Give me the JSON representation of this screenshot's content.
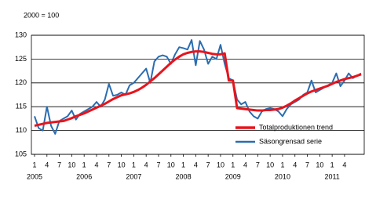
{
  "chart_data": {
    "type": "line",
    "unit_label": "2000 = 100",
    "categories": [
      "1",
      null,
      null,
      "4",
      null,
      null,
      "7",
      null,
      null,
      "10",
      null,
      null,
      "1",
      null,
      null,
      "4",
      null,
      null,
      "7",
      null,
      null,
      "10",
      null,
      null,
      "1",
      null,
      null,
      "4",
      null,
      null,
      "7",
      null,
      null,
      "10",
      null,
      null,
      "1",
      null,
      null,
      "4",
      null,
      null,
      "7",
      null,
      null,
      "10",
      null,
      null,
      "1",
      null,
      null,
      "4",
      null,
      null,
      "7",
      null,
      null,
      "10",
      null,
      null,
      "1",
      null,
      null,
      "4",
      null,
      null,
      "7",
      null,
      null,
      "10",
      null,
      null,
      "1",
      null,
      null,
      "4",
      null,
      null,
      null,
      null
    ],
    "years": [
      "2005",
      "2006",
      "2007",
      "2008",
      "2009",
      "2010",
      "2011"
    ],
    "series": [
      {
        "name": "Totalproduktionen trend",
        "color": "#e8141c",
        "width": 3,
        "values": [
          111,
          111.2,
          111.4,
          111.6,
          111.7,
          111.8,
          111.9,
          112,
          112.3,
          112.6,
          113,
          113.3,
          113.6,
          114,
          114.4,
          114.8,
          115.2,
          115.6,
          116.1,
          116.6,
          117,
          117.4,
          117.6,
          117.8,
          118.1,
          118.5,
          119,
          119.6,
          120.3,
          121,
          121.8,
          122.6,
          123.4,
          124.2,
          124.9,
          125.5,
          126,
          126.3,
          126.5,
          126.6,
          126.6,
          126.5,
          126.3,
          126.1,
          126,
          126,
          126.2,
          120.5,
          120.5,
          114.7,
          114.6,
          114.5,
          114.4,
          114.3,
          114.2,
          114.2,
          114.3,
          114.3,
          114.4,
          114.5,
          114.8,
          115.2,
          115.7,
          116.3,
          116.8,
          117.3,
          117.8,
          118.2,
          118.5,
          118.8,
          119.1,
          119.4,
          119.8,
          120.2,
          120.5,
          120.8,
          121,
          121.2,
          121.5,
          121.8
        ]
      },
      {
        "name": "Säsongrensad serie",
        "color": "#2a6db0",
        "width": 2,
        "values": [
          113,
          110.5,
          110,
          115,
          111,
          109.3,
          112,
          112.5,
          113,
          114.2,
          112.3,
          113.5,
          114,
          114.5,
          115,
          116,
          115,
          116.5,
          119.8,
          117.3,
          117.5,
          118,
          117.5,
          119.5,
          120,
          121,
          122,
          123,
          120,
          124.5,
          125.5,
          125.8,
          125.5,
          124,
          126,
          127.5,
          127.3,
          127,
          129,
          123.7,
          128.8,
          127,
          124,
          125.5,
          125,
          128,
          124,
          121,
          120.5,
          116.5,
          115.5,
          116,
          114,
          113,
          112.5,
          114,
          114.5,
          114.7,
          114.5,
          114,
          113,
          114.5,
          115.5,
          116,
          116.5,
          117.5,
          118,
          120.5,
          118,
          118.5,
          119,
          119.5,
          120,
          122,
          119.3,
          120.5,
          122,
          121,
          121.5,
          122
        ]
      }
    ],
    "ylim": [
      105,
      130
    ],
    "yticks": [
      105,
      110,
      115,
      120,
      125,
      130
    ],
    "grid": true
  }
}
